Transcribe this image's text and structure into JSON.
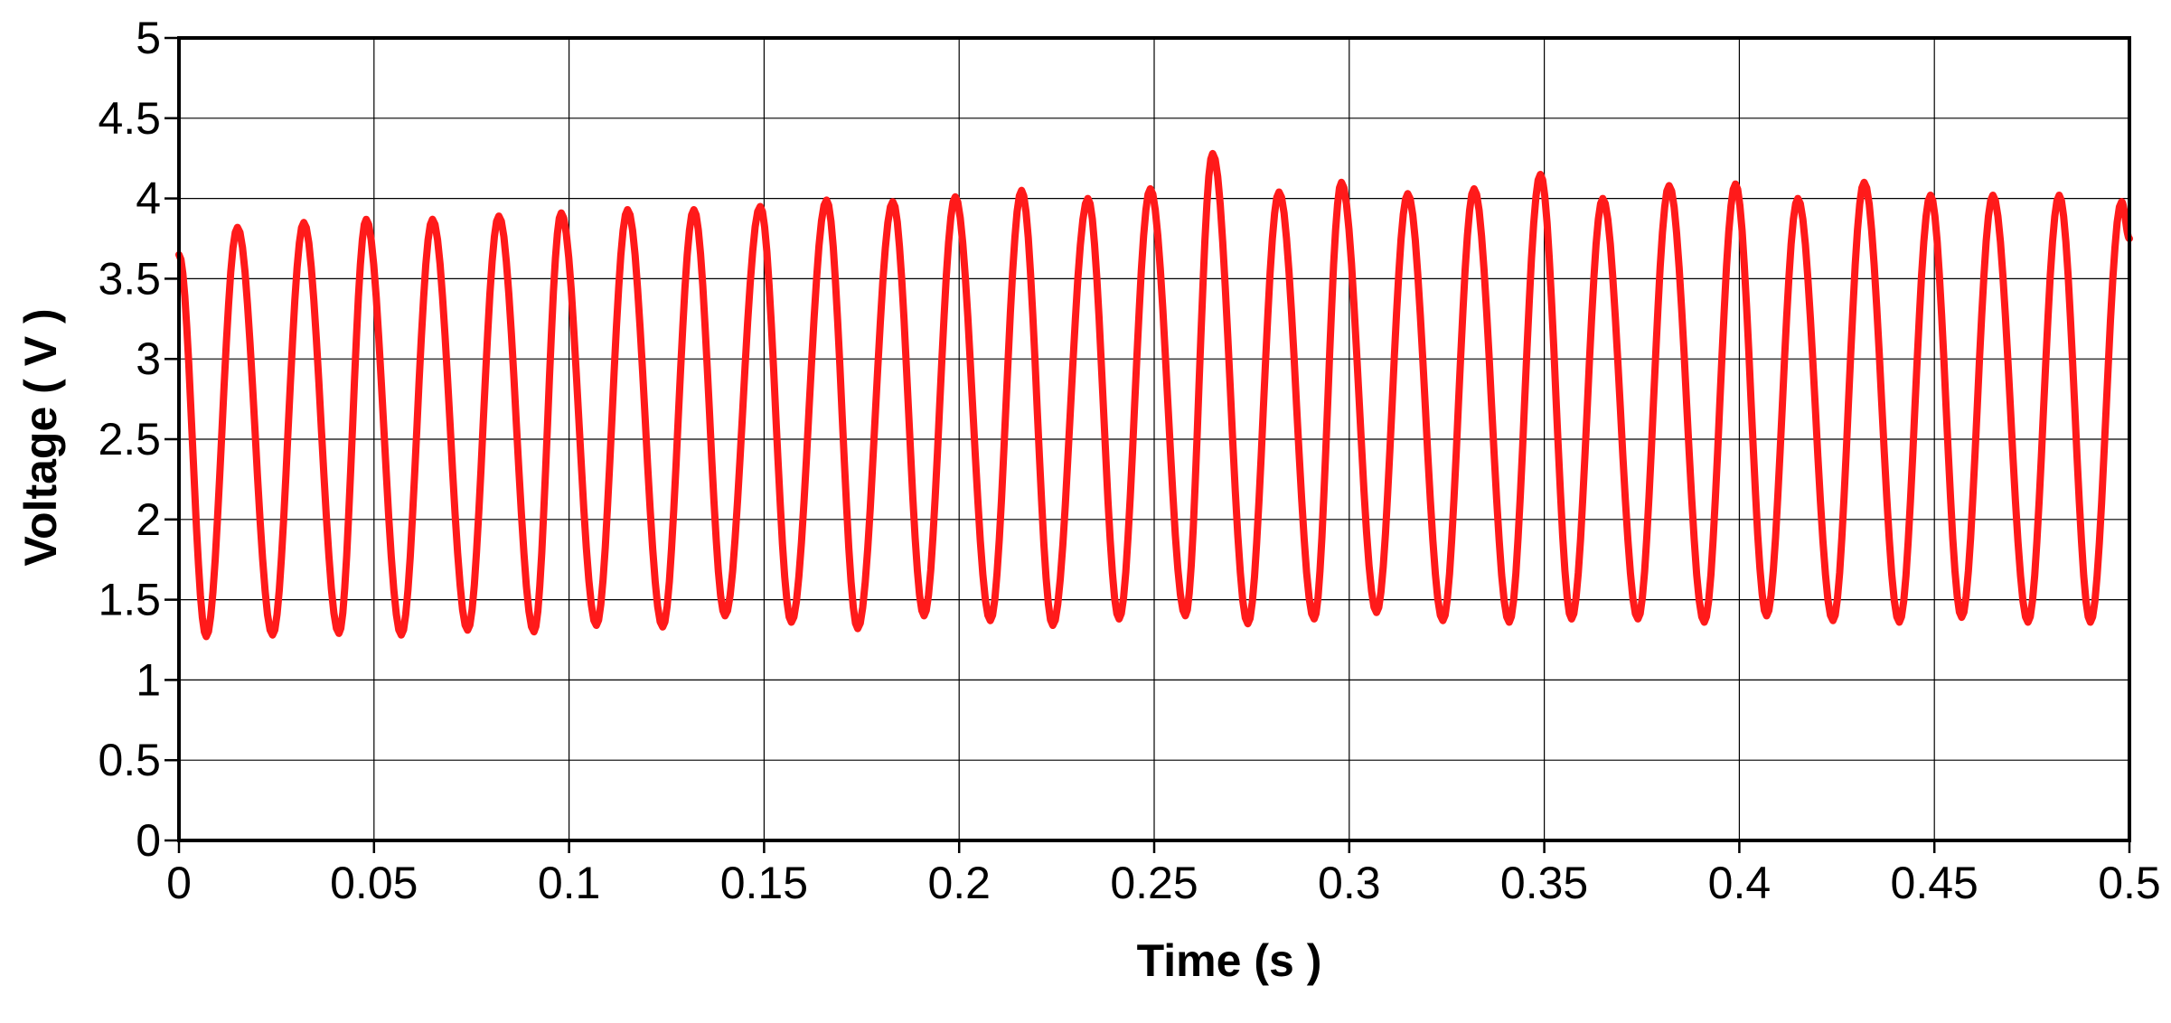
{
  "chart_data": {
    "type": "line",
    "title": "",
    "xlabel": "Time  (s )",
    "ylabel": "Voltage ( V )",
    "xlim": [
      0,
      0.5
    ],
    "ylim": [
      0,
      5
    ],
    "xticks": [
      0,
      0.05,
      0.1,
      0.15,
      0.2,
      0.25,
      0.3,
      0.35,
      0.4,
      0.45,
      0.5
    ],
    "yticks": [
      0,
      0.5,
      1,
      1.5,
      2,
      2.5,
      3,
      3.5,
      4,
      4.5,
      5
    ],
    "xtick_labels": [
      "0",
      "0.05",
      "0.1",
      "0.15",
      "0.2",
      "0.25",
      "0.3",
      "0.35",
      "0.4",
      "0.45",
      "0.5"
    ],
    "ytick_labels": [
      "0",
      "0.5",
      "1",
      "1.5",
      "2",
      "2.5",
      "3",
      "3.5",
      "4",
      "4.5",
      "5"
    ],
    "grid": true,
    "legend": "none",
    "series": [
      {
        "color": "#ff1a1a",
        "waveform": {
          "start_time": 0.0,
          "start_value": 3.65,
          "end_time": 0.5,
          "end_value": 3.75,
          "peaks": [
            {
              "t": 0.015,
              "v": 3.82
            },
            {
              "t": 0.032,
              "v": 3.85
            },
            {
              "t": 0.048,
              "v": 3.87
            },
            {
              "t": 0.065,
              "v": 3.87
            },
            {
              "t": 0.082,
              "v": 3.89
            },
            {
              "t": 0.098,
              "v": 3.91
            },
            {
              "t": 0.115,
              "v": 3.93
            },
            {
              "t": 0.132,
              "v": 3.93
            },
            {
              "t": 0.149,
              "v": 3.95
            },
            {
              "t": 0.166,
              "v": 3.99
            },
            {
              "t": 0.183,
              "v": 3.98
            },
            {
              "t": 0.199,
              "v": 4.01
            },
            {
              "t": 0.216,
              "v": 4.05
            },
            {
              "t": 0.233,
              "v": 4.0
            },
            {
              "t": 0.249,
              "v": 4.06
            },
            {
              "t": 0.265,
              "v": 4.28
            },
            {
              "t": 0.282,
              "v": 4.04
            },
            {
              "t": 0.298,
              "v": 4.1
            },
            {
              "t": 0.315,
              "v": 4.03
            },
            {
              "t": 0.332,
              "v": 4.06
            },
            {
              "t": 0.349,
              "v": 4.15
            },
            {
              "t": 0.365,
              "v": 4.0
            },
            {
              "t": 0.382,
              "v": 4.08
            },
            {
              "t": 0.399,
              "v": 4.09
            },
            {
              "t": 0.415,
              "v": 4.0
            },
            {
              "t": 0.432,
              "v": 4.1
            },
            {
              "t": 0.449,
              "v": 4.02
            },
            {
              "t": 0.465,
              "v": 4.02
            },
            {
              "t": 0.482,
              "v": 4.02
            },
            {
              "t": 0.498,
              "v": 3.98
            }
          ],
          "troughs": [
            {
              "t": 0.007,
              "v": 1.27
            },
            {
              "t": 0.024,
              "v": 1.28
            },
            {
              "t": 0.041,
              "v": 1.29
            },
            {
              "t": 0.057,
              "v": 1.28
            },
            {
              "t": 0.074,
              "v": 1.31
            },
            {
              "t": 0.091,
              "v": 1.3
            },
            {
              "t": 0.107,
              "v": 1.34
            },
            {
              "t": 0.124,
              "v": 1.33
            },
            {
              "t": 0.14,
              "v": 1.4
            },
            {
              "t": 0.157,
              "v": 1.36
            },
            {
              "t": 0.174,
              "v": 1.32
            },
            {
              "t": 0.191,
              "v": 1.4
            },
            {
              "t": 0.208,
              "v": 1.37
            },
            {
              "t": 0.224,
              "v": 1.34
            },
            {
              "t": 0.241,
              "v": 1.38
            },
            {
              "t": 0.258,
              "v": 1.4
            },
            {
              "t": 0.274,
              "v": 1.35
            },
            {
              "t": 0.291,
              "v": 1.38
            },
            {
              "t": 0.307,
              "v": 1.42
            },
            {
              "t": 0.324,
              "v": 1.37
            },
            {
              "t": 0.341,
              "v": 1.36
            },
            {
              "t": 0.357,
              "v": 1.38
            },
            {
              "t": 0.374,
              "v": 1.38
            },
            {
              "t": 0.391,
              "v": 1.36
            },
            {
              "t": 0.407,
              "v": 1.4
            },
            {
              "t": 0.424,
              "v": 1.37
            },
            {
              "t": 0.441,
              "v": 1.36
            },
            {
              "t": 0.457,
              "v": 1.39
            },
            {
              "t": 0.474,
              "v": 1.36
            },
            {
              "t": 0.49,
              "v": 1.36
            }
          ]
        }
      }
    ]
  }
}
